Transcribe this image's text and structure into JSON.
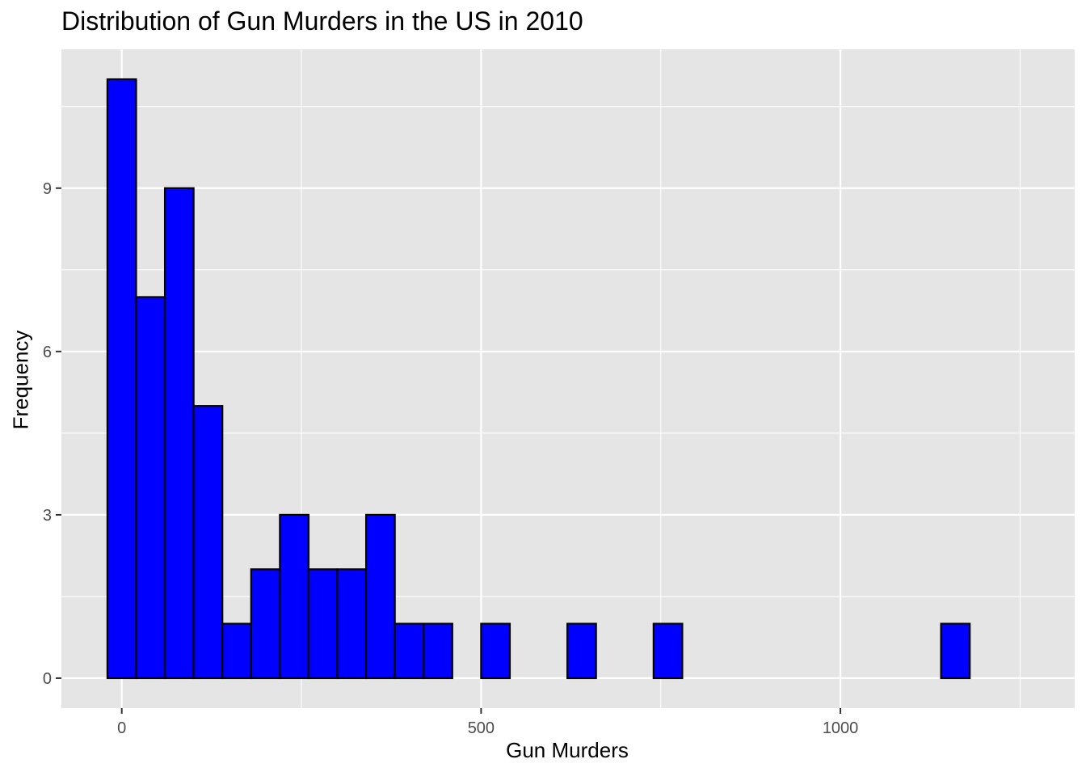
{
  "chart_data": {
    "type": "bar",
    "title": "Distribution of Gun Murders in the US in 2010",
    "xlabel": "Gun Murders",
    "ylabel": "Frequency",
    "binwidth": 40,
    "bins_start": -20,
    "values": [
      11,
      7,
      9,
      5,
      1,
      2,
      3,
      2,
      2,
      3,
      1,
      1,
      0,
      1,
      0,
      0,
      1,
      0,
      0,
      1,
      0,
      0,
      0,
      0,
      0,
      0,
      0,
      0,
      0,
      1
    ],
    "xlim": [
      -84,
      1326
    ],
    "ylim": [
      -0.55,
      11.55
    ],
    "xticks": [
      0,
      500,
      1000
    ],
    "xtick_labels": [
      "0",
      "500",
      "1000"
    ],
    "yticks": [
      0,
      3,
      6,
      9
    ],
    "ytick_labels": [
      "0",
      "3",
      "6",
      "9"
    ],
    "grid": true,
    "colors": {
      "fill": "#0000ff",
      "stroke": "#000000",
      "panel": "#e5e5e5",
      "grid": "#ffffff"
    }
  }
}
